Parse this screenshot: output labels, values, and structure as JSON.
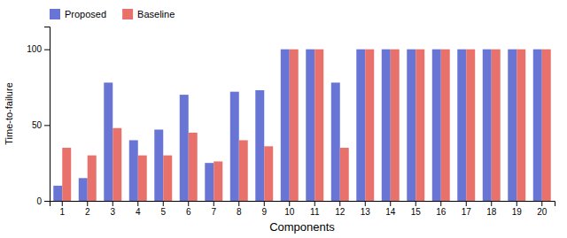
{
  "chart_data": {
    "type": "bar",
    "xlabel": "Components",
    "ylabel": "Time-to-failure",
    "categories": [
      1,
      2,
      3,
      4,
      5,
      6,
      7,
      8,
      9,
      10,
      11,
      12,
      13,
      14,
      15,
      16,
      17,
      18,
      19,
      20
    ],
    "series": [
      {
        "name": "Proposed",
        "color": "#6875d4",
        "values": [
          10,
          15,
          78,
          40,
          47,
          70,
          25,
          72,
          73,
          100,
          100,
          78,
          100,
          100,
          100,
          100,
          100,
          100,
          100,
          100
        ]
      },
      {
        "name": "Baseline",
        "color": "#e8726b",
        "values": [
          35,
          30,
          48,
          30,
          30,
          45,
          26,
          40,
          36,
          100,
          100,
          35,
          100,
          100,
          100,
          100,
          100,
          100,
          100,
          100
        ]
      }
    ],
    "ylim": [
      0,
      115
    ],
    "yticks": [
      0,
      50,
      100
    ],
    "legend": "upper left"
  }
}
